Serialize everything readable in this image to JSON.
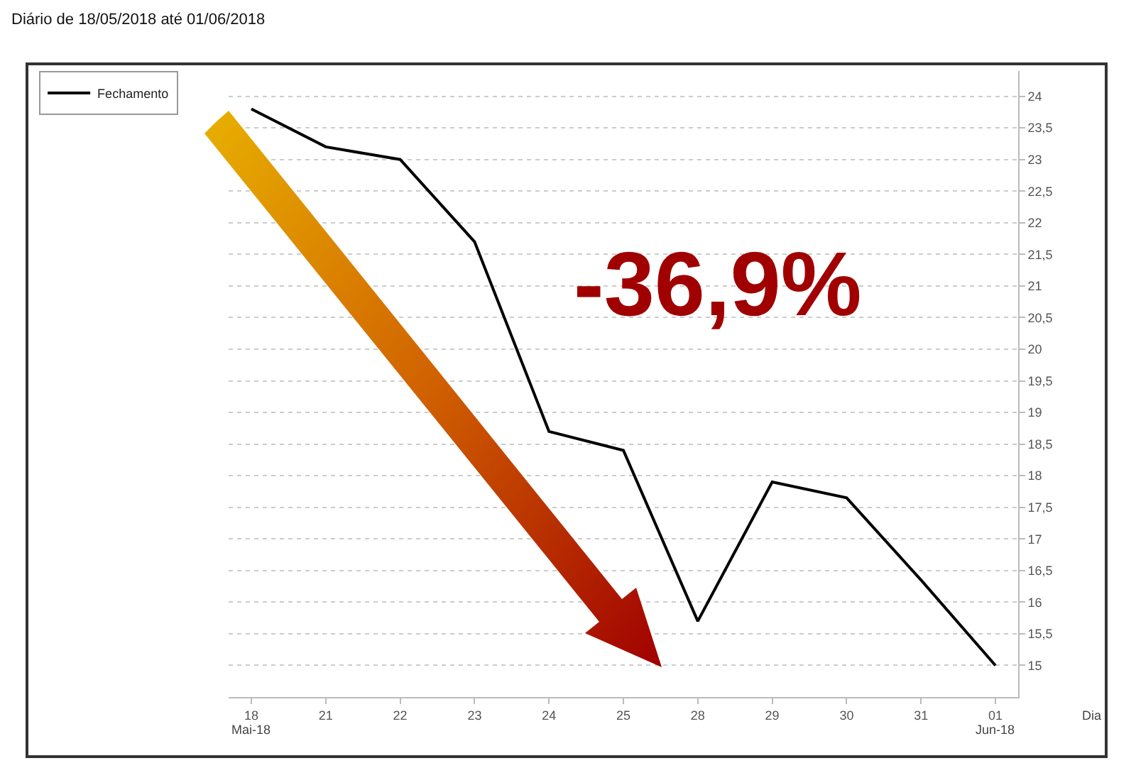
{
  "chart_data": {
    "type": "line",
    "subtitle": "Diário de 18/05/2018 até 01/06/2018",
    "xlabel": "Dia",
    "categories": [
      "18",
      "21",
      "22",
      "23",
      "24",
      "25",
      "28",
      "29",
      "30",
      "31",
      "01"
    ],
    "series": [
      {
        "name": "Fechamento",
        "color": "#000000",
        "values": [
          23.8,
          23.2,
          23.0,
          21.7,
          18.7,
          18.4,
          15.7,
          17.9,
          17.65,
          16.35,
          15.0
        ]
      }
    ],
    "ylim": [
      14.5,
      24.4
    ],
    "yticks": [
      15,
      {
        "value": 15.5,
        "label": "15,5"
      },
      16,
      {
        "value": 16.5,
        "label": "16,5"
      },
      17,
      {
        "value": 17.5,
        "label": "17,5"
      },
      18,
      {
        "value": 18.5,
        "label": "18,5"
      },
      19,
      {
        "value": 19.5,
        "label": "19,5"
      },
      20,
      {
        "value": 20.5,
        "label": "20,5"
      },
      21,
      {
        "value": 21.5,
        "label": "21,5"
      },
      22,
      {
        "value": 22.5,
        "label": "22,5"
      },
      23,
      {
        "value": 23.5,
        "label": "23,5"
      },
      24
    ],
    "grid": "y",
    "legend": "top left",
    "annotations": [
      "-36,9%",
      "Mai-18",
      "Jun-18"
    ]
  }
}
